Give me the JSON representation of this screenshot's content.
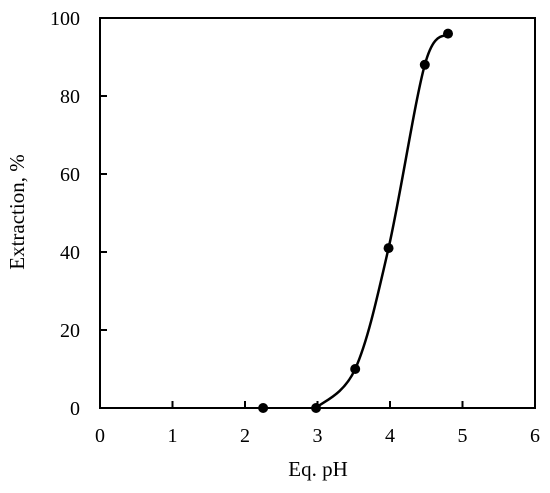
{
  "chart_data": {
    "type": "scatter",
    "xlabel": "Eq. pH",
    "ylabel": "Extraction, %",
    "xlim": [
      0,
      6
    ],
    "ylim": [
      0,
      100
    ],
    "xticks": [
      0,
      1,
      2,
      3,
      4,
      5,
      6
    ],
    "yticks": [
      0,
      20,
      40,
      60,
      80,
      100
    ],
    "grid": false,
    "legend": "none",
    "series": [
      {
        "points": [
          {
            "x": 2.25,
            "y": 0
          },
          {
            "x": 2.98,
            "y": 0
          },
          {
            "x": 3.52,
            "y": 10
          },
          {
            "x": 3.98,
            "y": 41
          },
          {
            "x": 4.48,
            "y": 88
          },
          {
            "x": 4.8,
            "y": 96
          }
        ],
        "fitted_curve": true,
        "marker_color": "#000000",
        "line_color": "#000000"
      }
    ]
  }
}
